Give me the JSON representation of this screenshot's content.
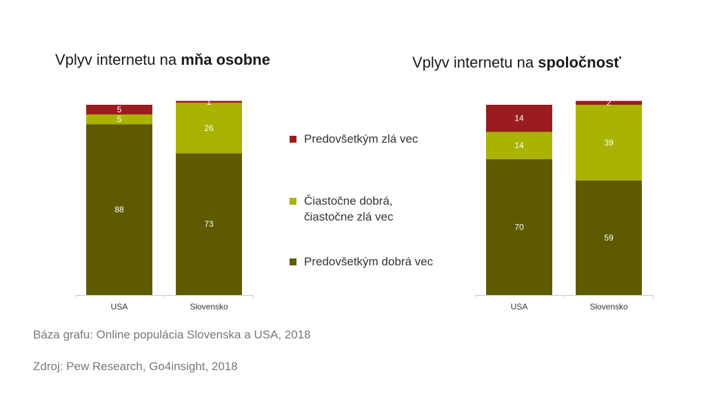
{
  "colors": {
    "bad": "#9B1C1F",
    "mixed": "#A8B400",
    "good": "#5E5A00",
    "axis": "#c8c8c8"
  },
  "legend": [
    {
      "label": "Predovšetkým zlá vec",
      "color": "#9B1C1F"
    },
    {
      "label_lines": [
        "Čiastočne dobrá,",
        "čiastočne zlá vec"
      ],
      "color": "#A8B400"
    },
    {
      "label": "Predovšetkým dobrá vec",
      "color": "#5E5A00"
    }
  ],
  "footer": {
    "base": "Báza grafu: Online populácia Slovenska a USA, 2018",
    "source": "Zdroj: Pew Research, Go4insight,  2018"
  },
  "chart_data": [
    {
      "type": "bar",
      "stacked": true,
      "title_plain": "Vplyv internetu na ",
      "title_bold": "mňa osobne",
      "categories": [
        "USA",
        "Slovensko"
      ],
      "series": [
        {
          "name": "Predovšetkým dobrá vec",
          "values": [
            88,
            73
          ]
        },
        {
          "name": "Čiastočne dobrá, čiastočne zlá vec",
          "values": [
            5,
            26
          ]
        },
        {
          "name": "Predovšetkým zlá vec",
          "values": [
            5,
            1
          ]
        }
      ],
      "ylim": [
        0,
        98
      ]
    },
    {
      "type": "bar",
      "stacked": true,
      "title_plain": "Vplyv internetu na ",
      "title_bold": "spoločnosť",
      "categories": [
        "USA",
        "Slovensko"
      ],
      "series": [
        {
          "name": "Predovšetkým dobrá vec",
          "values": [
            70,
            59
          ]
        },
        {
          "name": "Čiastočne dobrá, čiastočne zlá vec",
          "values": [
            14,
            39
          ]
        },
        {
          "name": "Predovšetkým zlá vec",
          "values": [
            14,
            2
          ]
        }
      ],
      "ylim": [
        0,
        98
      ]
    }
  ]
}
